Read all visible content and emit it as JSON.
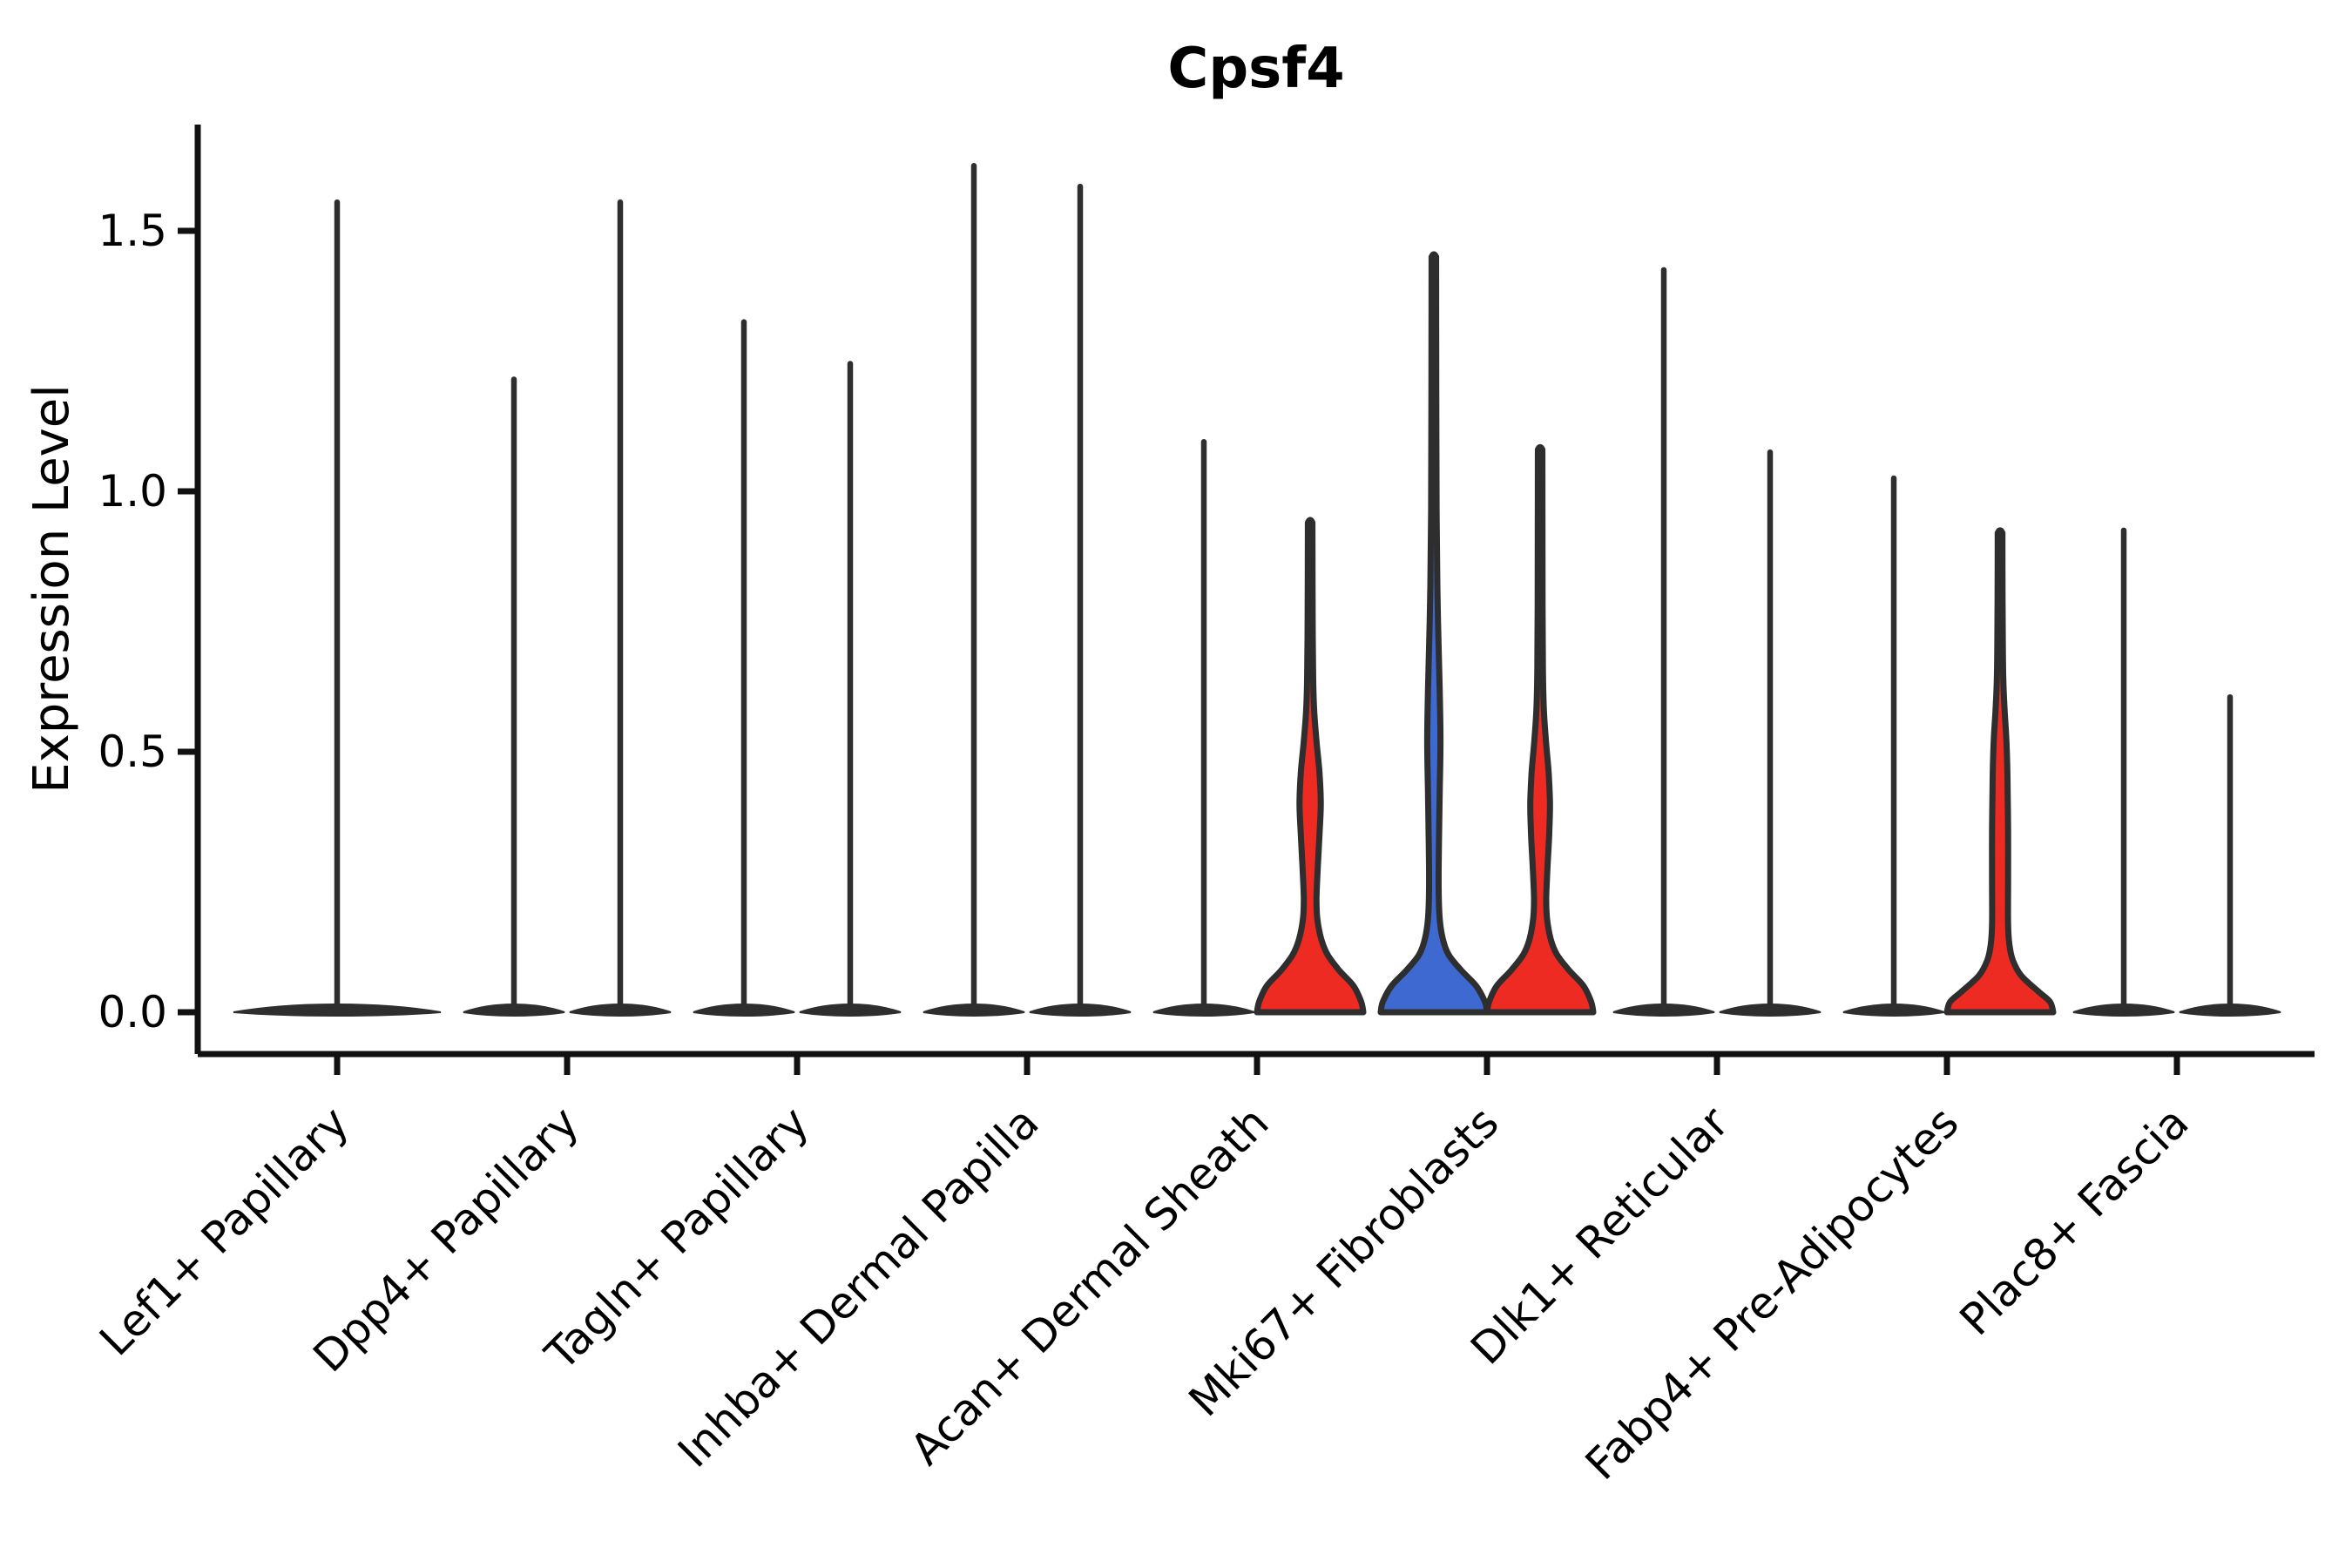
{
  "title": {
    "text": "Cpsf4"
  },
  "y_axis": {
    "label": "Expression Level",
    "tick_labels": [
      "0.0",
      "0.5",
      "1.0",
      "1.5"
    ],
    "tick_values": [
      0,
      0.5,
      1.0,
      1.5
    ]
  },
  "x_axis": {
    "categories": [
      "Lef1+ Papillary",
      "Dpp4+ Papillary",
      "Tagln+ Papillary",
      "Inhba+ Dermal Papilla",
      "Acan+ Dermal Sheath",
      "Mki67+ Fibroblasts",
      "Dlk1+ Reticular",
      "Fabp4+ Pre-Adipocytes",
      "Plac8+ Fascia"
    ]
  },
  "colors": {
    "red": "#EE2B23",
    "blue": "#3D69D1",
    "violin_outline": "#2E2E2E",
    "axis": "#111111",
    "background": "#FFFFFF"
  },
  "chart_data": {
    "type": "violin",
    "title": "Cpsf4",
    "xlabel": "",
    "ylabel": "Expression Level",
    "ylim": [
      -0.08,
      1.71
    ],
    "yticks": [
      0,
      0.5,
      1.0,
      1.5
    ],
    "grid": false,
    "legend": "none",
    "categories": [
      "Lef1+ Papillary",
      "Dpp4+ Papillary",
      "Tagln+ Papillary",
      "Inhba+ Dermal Papilla",
      "Acan+ Dermal Sheath",
      "Mki67+ Fibroblasts",
      "Dlk1+ Reticular",
      "Fabp4+ Pre-Adipocytes",
      "Plac8+ Fascia"
    ],
    "groups": [
      {
        "category": "Lef1+ Papillary",
        "violins": [
          {
            "pos": "center",
            "max": 1.56,
            "style": "spike",
            "color": "black"
          }
        ]
      },
      {
        "category": "Dpp4+ Papillary",
        "violins": [
          {
            "pos": "left",
            "max": 1.22,
            "style": "spike",
            "color": "black"
          },
          {
            "pos": "right",
            "max": 1.56,
            "style": "spike",
            "color": "black"
          }
        ]
      },
      {
        "category": "Tagln+ Papillary",
        "violins": [
          {
            "pos": "left",
            "max": 1.33,
            "style": "spike",
            "color": "black"
          },
          {
            "pos": "right",
            "max": 1.25,
            "style": "spike",
            "color": "black"
          }
        ]
      },
      {
        "category": "Inhba+ Dermal Papilla",
        "violins": [
          {
            "pos": "left",
            "max": 1.63,
            "style": "spike",
            "color": "black"
          },
          {
            "pos": "right",
            "max": 1.59,
            "style": "spike",
            "color": "black"
          }
        ]
      },
      {
        "category": "Acan+ Dermal Sheath",
        "violins": [
          {
            "pos": "left",
            "max": 1.1,
            "style": "spike",
            "color": "black"
          },
          {
            "pos": "right",
            "max": 0.94,
            "style": "flask",
            "color": "red",
            "profile": "flask_wide"
          }
        ]
      },
      {
        "category": "Mki67+ Fibroblasts",
        "violins": [
          {
            "pos": "left",
            "max": 1.45,
            "style": "flask",
            "color": "blue",
            "profile": "flask_slim"
          },
          {
            "pos": "right",
            "max": 1.08,
            "style": "flask",
            "color": "red",
            "profile": "flask_mid"
          }
        ]
      },
      {
        "category": "Dlk1+ Reticular",
        "violins": [
          {
            "pos": "left",
            "max": 1.43,
            "style": "spike",
            "color": "black"
          },
          {
            "pos": "right",
            "max": 1.08,
            "style": "spike",
            "color": "black"
          }
        ]
      },
      {
        "category": "Fabp4+ Pre-Adipocytes",
        "violins": [
          {
            "pos": "left",
            "max": 1.03,
            "style": "spike",
            "color": "black"
          },
          {
            "pos": "right",
            "max": 0.92,
            "style": "flask",
            "color": "red",
            "profile": "flask_small"
          }
        ]
      },
      {
        "category": "Plac8+ Fascia",
        "violins": [
          {
            "pos": "left",
            "max": 0.93,
            "style": "spike",
            "color": "black"
          },
          {
            "pos": "right",
            "max": 0.61,
            "style": "spike",
            "color": "black"
          }
        ]
      }
    ],
    "profiles": {
      "flask_wide": [
        [
          0,
          1
        ],
        [
          0.02,
          0.96
        ],
        [
          0.05,
          0.82
        ],
        [
          0.08,
          0.55
        ],
        [
          0.11,
          0.33
        ],
        [
          0.14,
          0.21
        ],
        [
          0.18,
          0.135
        ],
        [
          0.22,
          0.12
        ],
        [
          0.28,
          0.145
        ],
        [
          0.34,
          0.175
        ],
        [
          0.4,
          0.2
        ],
        [
          0.46,
          0.175
        ],
        [
          0.52,
          0.12
        ],
        [
          0.58,
          0.075
        ],
        [
          0.65,
          0.055
        ],
        [
          0.75,
          0.048
        ],
        [
          0.85,
          0.045
        ],
        [
          0.94,
          0.043
        ]
      ],
      "flask_slim": [
        [
          0,
          1
        ],
        [
          0.02,
          0.96
        ],
        [
          0.05,
          0.8
        ],
        [
          0.08,
          0.52
        ],
        [
          0.11,
          0.28
        ],
        [
          0.14,
          0.17
        ],
        [
          0.18,
          0.11
        ],
        [
          0.24,
          0.09
        ],
        [
          0.32,
          0.095
        ],
        [
          0.42,
          0.11
        ],
        [
          0.52,
          0.125
        ],
        [
          0.62,
          0.11
        ],
        [
          0.72,
          0.085
        ],
        [
          0.82,
          0.065
        ],
        [
          0.95,
          0.052
        ],
        [
          1.1,
          0.047
        ],
        [
          1.3,
          0.044
        ],
        [
          1.45,
          0.042
        ]
      ],
      "flask_mid": [
        [
          0,
          1
        ],
        [
          0.02,
          0.96
        ],
        [
          0.05,
          0.82
        ],
        [
          0.08,
          0.55
        ],
        [
          0.11,
          0.32
        ],
        [
          0.14,
          0.2
        ],
        [
          0.18,
          0.13
        ],
        [
          0.22,
          0.115
        ],
        [
          0.28,
          0.14
        ],
        [
          0.34,
          0.17
        ],
        [
          0.4,
          0.185
        ],
        [
          0.46,
          0.16
        ],
        [
          0.52,
          0.11
        ],
        [
          0.58,
          0.07
        ],
        [
          0.66,
          0.052
        ],
        [
          0.78,
          0.046
        ],
        [
          0.92,
          0.044
        ],
        [
          1.08,
          0.042
        ]
      ],
      "flask_small": [
        [
          0,
          1
        ],
        [
          0.02,
          0.94
        ],
        [
          0.04,
          0.72
        ],
        [
          0.07,
          0.4
        ],
        [
          0.1,
          0.24
        ],
        [
          0.13,
          0.175
        ],
        [
          0.17,
          0.15
        ],
        [
          0.25,
          0.15
        ],
        [
          0.35,
          0.15
        ],
        [
          0.45,
          0.14
        ],
        [
          0.52,
          0.12
        ],
        [
          0.58,
          0.085
        ],
        [
          0.64,
          0.06
        ],
        [
          0.72,
          0.05
        ],
        [
          0.82,
          0.046
        ],
        [
          0.92,
          0.044
        ]
      ]
    }
  }
}
